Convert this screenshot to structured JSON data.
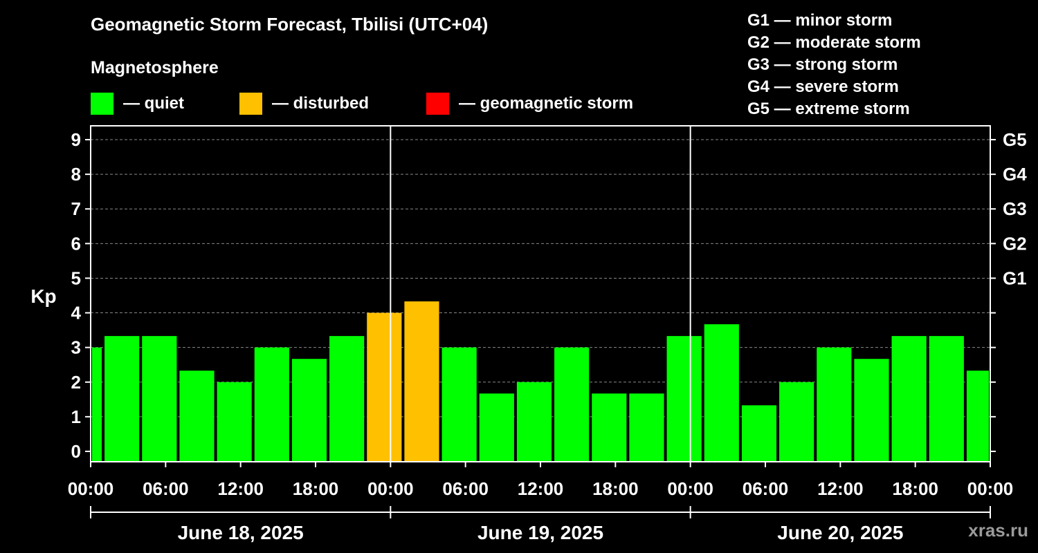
{
  "header": {
    "title": "Geomagnetic Storm Forecast, Tbilisi (UTC+04)",
    "subtitle": "Magnetosphere"
  },
  "legend": [
    {
      "label": "— quiet",
      "color": "#00ff00"
    },
    {
      "label": "— disturbed",
      "color": "#ffc000"
    },
    {
      "label": "— geomagnetic storm",
      "color": "#ff0000"
    }
  ],
  "storm_levels": [
    "G1 — minor storm",
    "G2 — moderate storm",
    "G3 — strong storm",
    "G4 — severe storm",
    "G5 — extreme storm"
  ],
  "footer": {
    "credit": "xras.ru"
  },
  "chart_data": {
    "type": "bar",
    "title": "Geomagnetic Storm Forecast, Tbilisi (UTC+04)",
    "ylabel": "Kp",
    "ylim": [
      -0.3,
      9.4
    ],
    "yticks": [
      0,
      1,
      2,
      3,
      4,
      5,
      6,
      7,
      8,
      9
    ],
    "right_ticks": [
      {
        "value": 5,
        "label": "G1"
      },
      {
        "value": 6,
        "label": "G2"
      },
      {
        "value": 7,
        "label": "G3"
      },
      {
        "value": 8,
        "label": "G4"
      },
      {
        "value": 9,
        "label": "G5"
      }
    ],
    "xlim_hours": [
      0,
      72
    ],
    "xticks": [
      {
        "hour": 0,
        "label": "00:00"
      },
      {
        "hour": 6,
        "label": "06:00"
      },
      {
        "hour": 12,
        "label": "12:00"
      },
      {
        "hour": 18,
        "label": "18:00"
      },
      {
        "hour": 24,
        "label": "00:00"
      },
      {
        "hour": 30,
        "label": "06:00"
      },
      {
        "hour": 36,
        "label": "12:00"
      },
      {
        "hour": 42,
        "label": "18:00"
      },
      {
        "hour": 48,
        "label": "00:00"
      },
      {
        "hour": 54,
        "label": "06:00"
      },
      {
        "hour": 60,
        "label": "12:00"
      },
      {
        "hour": 66,
        "label": "18:00"
      },
      {
        "hour": 72,
        "label": "00:00"
      }
    ],
    "day_separators_hours": [
      24,
      48
    ],
    "dates": [
      {
        "label": "June 18, 2025",
        "start_hour": 0,
        "end_hour": 24
      },
      {
        "label": "June 19, 2025",
        "start_hour": 24,
        "end_hour": 48
      },
      {
        "label": "June 20, 2025",
        "start_hour": 48,
        "end_hour": 72
      }
    ],
    "grid": true,
    "level_colors": {
      "quiet": "#00ff00",
      "disturbed": "#ffc000",
      "storm": "#ff0000"
    },
    "bars": [
      {
        "start_hour": 0,
        "end_hour": 1,
        "kp": 3.0,
        "level": "quiet"
      },
      {
        "start_hour": 1,
        "end_hour": 4,
        "kp": 3.33,
        "level": "quiet"
      },
      {
        "start_hour": 4,
        "end_hour": 7,
        "kp": 3.33,
        "level": "quiet"
      },
      {
        "start_hour": 7,
        "end_hour": 10,
        "kp": 2.33,
        "level": "quiet"
      },
      {
        "start_hour": 10,
        "end_hour": 13,
        "kp": 2.0,
        "level": "quiet"
      },
      {
        "start_hour": 13,
        "end_hour": 16,
        "kp": 3.0,
        "level": "quiet"
      },
      {
        "start_hour": 16,
        "end_hour": 19,
        "kp": 2.67,
        "level": "quiet"
      },
      {
        "start_hour": 19,
        "end_hour": 22,
        "kp": 3.33,
        "level": "quiet"
      },
      {
        "start_hour": 22,
        "end_hour": 25,
        "kp": 4.0,
        "level": "disturbed"
      },
      {
        "start_hour": 25,
        "end_hour": 28,
        "kp": 4.33,
        "level": "disturbed"
      },
      {
        "start_hour": 28,
        "end_hour": 31,
        "kp": 3.0,
        "level": "quiet"
      },
      {
        "start_hour": 31,
        "end_hour": 34,
        "kp": 1.67,
        "level": "quiet"
      },
      {
        "start_hour": 34,
        "end_hour": 37,
        "kp": 2.0,
        "level": "quiet"
      },
      {
        "start_hour": 37,
        "end_hour": 40,
        "kp": 3.0,
        "level": "quiet"
      },
      {
        "start_hour": 40,
        "end_hour": 43,
        "kp": 1.67,
        "level": "quiet"
      },
      {
        "start_hour": 43,
        "end_hour": 46,
        "kp": 1.67,
        "level": "quiet"
      },
      {
        "start_hour": 46,
        "end_hour": 49,
        "kp": 3.33,
        "level": "quiet"
      },
      {
        "start_hour": 49,
        "end_hour": 52,
        "kp": 3.67,
        "level": "quiet"
      },
      {
        "start_hour": 52,
        "end_hour": 55,
        "kp": 1.33,
        "level": "quiet"
      },
      {
        "start_hour": 55,
        "end_hour": 58,
        "kp": 2.0,
        "level": "quiet"
      },
      {
        "start_hour": 58,
        "end_hour": 61,
        "kp": 3.0,
        "level": "quiet"
      },
      {
        "start_hour": 61,
        "end_hour": 64,
        "kp": 2.67,
        "level": "quiet"
      },
      {
        "start_hour": 64,
        "end_hour": 67,
        "kp": 3.33,
        "level": "quiet"
      },
      {
        "start_hour": 67,
        "end_hour": 70,
        "kp": 3.33,
        "level": "quiet"
      },
      {
        "start_hour": 70,
        "end_hour": 72,
        "kp": 2.33,
        "level": "quiet"
      }
    ]
  }
}
